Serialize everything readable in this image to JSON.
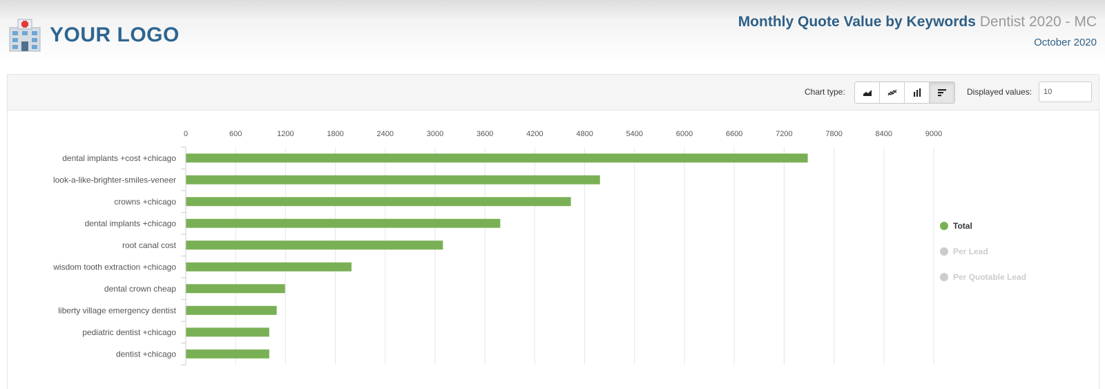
{
  "logo": {
    "text": "YOUR LOGO"
  },
  "header": {
    "title": "Monthly Quote Value by Keywords",
    "subtitle": "Dentist 2020 - MC",
    "period": "October 2020"
  },
  "toolbar": {
    "chart_type_label": "Chart type:",
    "chart_types": [
      {
        "icon": "area-chart-icon",
        "active": false
      },
      {
        "icon": "line-chart-icon",
        "active": false
      },
      {
        "icon": "column-chart-icon",
        "active": false
      },
      {
        "icon": "bar-chart-icon",
        "active": true
      }
    ],
    "displayed_values_label": "Displayed values:",
    "displayed_values": "10"
  },
  "colors": {
    "bar": "#7ab055",
    "inactive": "#cccccc",
    "text": "#333333"
  },
  "chart_data": {
    "type": "bar",
    "orientation": "horizontal",
    "categories": [
      "dental implants +cost +chicago",
      "look-a-like-brighter-smiles-veneer",
      "crowns +chicago",
      "dental implants +chicago",
      "root canal cost",
      "wisdom tooth extraction +chicago",
      "dental crown cheap",
      "liberty village emergency dentist",
      "pediatric dentist +chicago",
      "dentist +chicago"
    ],
    "series": [
      {
        "name": "Total",
        "values": [
          7480,
          4980,
          4630,
          3780,
          3090,
          1990,
          1190,
          1090,
          1000,
          1000
        ]
      }
    ],
    "x_ticks": [
      "0",
      "600",
      "1200",
      "1800",
      "2400",
      "3000",
      "3600",
      "4200",
      "4800",
      "5400",
      "6000",
      "6600",
      "7200",
      "7800",
      "8400",
      "9000"
    ],
    "xlim": [
      0,
      9000
    ],
    "grid": true,
    "legend": {
      "placement": "right",
      "items": [
        {
          "name": "Total",
          "active": true
        },
        {
          "name": "Per Lead",
          "active": false
        },
        {
          "name": "Per Quotable Lead",
          "active": false
        }
      ]
    }
  }
}
